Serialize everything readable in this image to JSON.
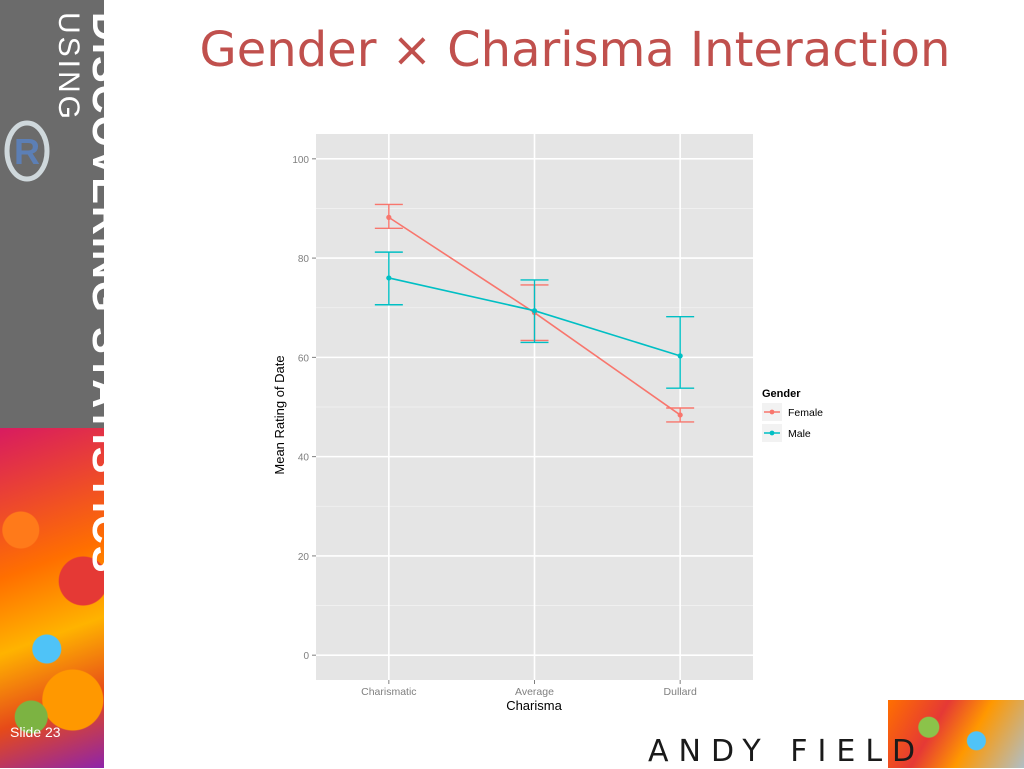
{
  "slide": {
    "title": "Gender × Charisma Interaction",
    "number_label": "Slide 23",
    "brand_line1": "DISCOVERING STATISTICS",
    "brand_line2": "USING",
    "brand_logo_letter": "R",
    "author": "ANDY FIELD"
  },
  "colors": {
    "title": "#c0504d",
    "panel": "#e5e5e5",
    "female": "#f8766d",
    "male": "#00bfc4"
  },
  "chart_data": {
    "type": "line",
    "xlabel": "Charisma",
    "ylabel": "Mean Rating of Date",
    "categories": [
      "Charismatic",
      "Average",
      "Dullard"
    ],
    "ylim": [
      -5,
      105
    ],
    "yticks": [
      0,
      20,
      40,
      60,
      80,
      100
    ],
    "grid": true,
    "legend": {
      "title": "Gender",
      "position": "right"
    },
    "series": [
      {
        "name": "Female",
        "values": [
          88.2,
          69.0,
          48.4
        ],
        "error_low": [
          86.0,
          63.4,
          47.0
        ],
        "error_high": [
          90.8,
          74.6,
          49.8
        ]
      },
      {
        "name": "Male",
        "values": [
          76.0,
          69.4,
          60.3
        ],
        "error_low": [
          70.6,
          63.0,
          53.8
        ],
        "error_high": [
          81.2,
          75.6,
          68.2
        ]
      }
    ]
  }
}
